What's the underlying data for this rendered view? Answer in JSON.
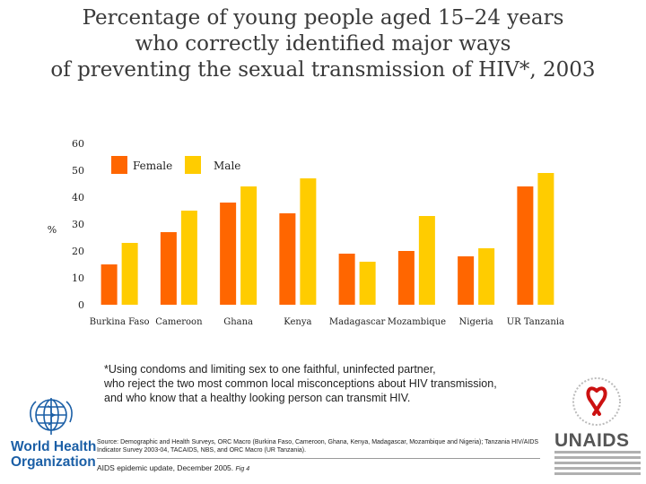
{
  "title": {
    "line1": "Percentage of young people aged 15–24 years",
    "line2": "who correctly identified major ways",
    "line3": "of preventing the sexual transmission of HIV*, 2003"
  },
  "chart_data": {
    "type": "bar",
    "categories": [
      "Burkina Faso",
      "Cameroon",
      "Ghana",
      "Kenya",
      "Madagascar",
      "Mozambique",
      "Nigeria",
      "UR Tanzania"
    ],
    "series": [
      {
        "name": "Female",
        "color": "#ff6600",
        "values": [
          15,
          27,
          38,
          34,
          19,
          20,
          18,
          44
        ]
      },
      {
        "name": "Male",
        "color": "#ffcc00",
        "values": [
          23,
          35,
          44,
          47,
          16,
          33,
          21,
          49
        ]
      }
    ],
    "ylim": [
      0,
      60
    ],
    "yticks": [
      0,
      10,
      20,
      30,
      40,
      50,
      60
    ],
    "ylabel": "%",
    "xlabel": "",
    "grid": false,
    "legend": "top-left"
  },
  "footnote": {
    "line1": "*Using condoms and limiting sex to one faithful, uninfected partner,",
    "line2": "who reject the two most common local misconceptions about HIV transmission,",
    "line3": "and who know that a healthy looking person can transmit HIV."
  },
  "source": "Source: Demographic and Health Surveys, ORC Macro (Burkina Faso, Cameroon, Ghana, Kenya, Madagascar, Mozambique and Nigeria); Tanzania HIV/AIDS Indicator Survey 2003-04, TACAIDS, NBS, and ORC Macro (UR Tanzania).",
  "citation": {
    "text": "AIDS epidemic update, December 2005.",
    "fig": "Fig 4"
  },
  "logos": {
    "who_line1": "World Health",
    "who_line2": "Organization",
    "unaids": "UNAIDS"
  }
}
